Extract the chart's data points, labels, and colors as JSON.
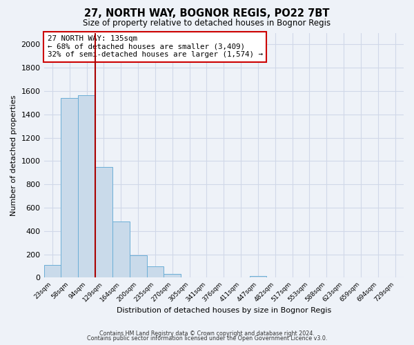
{
  "title": "27, NORTH WAY, BOGNOR REGIS, PO22 7BT",
  "subtitle": "Size of property relative to detached houses in Bognor Regis",
  "xlabel": "Distribution of detached houses by size in Bognor Regis",
  "ylabel": "Number of detached properties",
  "bar_labels": [
    "23sqm",
    "58sqm",
    "94sqm",
    "129sqm",
    "164sqm",
    "200sqm",
    "235sqm",
    "270sqm",
    "305sqm",
    "341sqm",
    "376sqm",
    "411sqm",
    "447sqm",
    "482sqm",
    "517sqm",
    "553sqm",
    "588sqm",
    "623sqm",
    "659sqm",
    "694sqm",
    "729sqm"
  ],
  "bar_values": [
    110,
    1540,
    1565,
    950,
    485,
    190,
    100,
    35,
    0,
    0,
    0,
    0,
    15,
    0,
    0,
    0,
    0,
    0,
    0,
    0,
    0
  ],
  "bar_color": "#c9daea",
  "bar_edge_color": "#6baed6",
  "vline_x": 3.0,
  "vline_color": "#aa0000",
  "ylim": [
    0,
    2100
  ],
  "yticks": [
    0,
    200,
    400,
    600,
    800,
    1000,
    1200,
    1400,
    1600,
    1800,
    2000
  ],
  "annotation_title": "27 NORTH WAY: 135sqm",
  "annotation_line1": "← 68% of detached houses are smaller (3,409)",
  "annotation_line2": "32% of semi-detached houses are larger (1,574) →",
  "annotation_box_color": "#ffffff",
  "annotation_box_edge": "#cc0000",
  "footer1": "Contains HM Land Registry data © Crown copyright and database right 2024.",
  "footer2": "Contains public sector information licensed under the Open Government Licence v3.0.",
  "bg_color": "#eef2f8",
  "plot_bg_color": "#eef2f8",
  "grid_color": "#d0d8e8"
}
